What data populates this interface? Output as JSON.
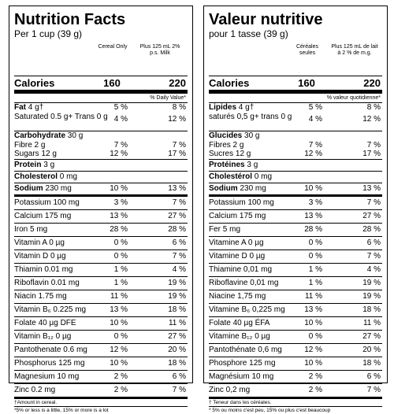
{
  "en": {
    "title": "Nutrition Facts",
    "serving": "Per 1 cup (39 g)",
    "col1": "Cereal Only",
    "col2": "Plus 125 mL 2% p.s. Milk",
    "calories_label": "Calories",
    "calories_1": "160",
    "calories_2": "220",
    "dv_header": "% Daily Value*",
    "fat": {
      "label": "Fat 4 g†",
      "p1": "5 %",
      "p2": "8 %"
    },
    "sat": {
      "label": "Saturated 0.5 g",
      "label2": "+ Trans 0 g",
      "p1": "4 %",
      "p2": "12 %"
    },
    "carb": {
      "label": "Carbohydrate 30 g"
    },
    "fibre": {
      "label": "Fibre 2 g",
      "p1": "7 %",
      "p2": "7 %"
    },
    "sugars": {
      "label": "Sugars 12 g",
      "p1": "12 %",
      "p2": "17 %"
    },
    "protein": {
      "label": "Protein 3 g"
    },
    "cholesterol": {
      "label": "Cholesterol 0 mg"
    },
    "sodium": {
      "label": "Sodium 230 mg",
      "p1": "10 %",
      "p2": "13 %"
    },
    "micros": [
      {
        "label": "Potassium 100 mg",
        "p1": "3 %",
        "p2": "7 %"
      },
      {
        "label": "Calcium 175 mg",
        "p1": "13 %",
        "p2": "27 %"
      },
      {
        "label": "Iron 5 mg",
        "p1": "28 %",
        "p2": "28 %"
      },
      {
        "label": "Vitamin A 0 µg",
        "p1": "0 %",
        "p2": "6 %"
      },
      {
        "label": "Vitamin D 0 µg",
        "p1": "0 %",
        "p2": "7 %"
      },
      {
        "label": "Thiamin 0.01 mg",
        "p1": "1 %",
        "p2": "4 %"
      },
      {
        "label": "Riboflavin 0.01 mg",
        "p1": "1 %",
        "p2": "19 %"
      },
      {
        "label": "Niacin 1.75 mg",
        "p1": "11 %",
        "p2": "19 %"
      },
      {
        "label": "Vitamin B₆ 0.225 mg",
        "p1": "13 %",
        "p2": "18 %"
      },
      {
        "label": "Folate 40 µg DFE",
        "p1": "10 %",
        "p2": "11 %"
      },
      {
        "label": "Vitamin B₁₂ 0 µg",
        "p1": "0 %",
        "p2": "27 %"
      },
      {
        "label": "Pantothenate 0.6 mg",
        "p1": "12 %",
        "p2": "20 %"
      },
      {
        "label": "Phosphorus 125 mg",
        "p1": "10 %",
        "p2": "18 %"
      },
      {
        "label": "Magnesium 10 mg",
        "p1": "2 %",
        "p2": "6 %"
      },
      {
        "label": "Zinc 0.2 mg",
        "p1": "2 %",
        "p2": "7 %"
      }
    ],
    "footnote1": "†Amount in cereal.",
    "footnote2": "*5% or less is a little, 15% or more is a lot"
  },
  "fr": {
    "title": "Valeur nutritive",
    "serving": "pour 1 tasse (39 g)",
    "col1": "Céréales seules",
    "col2": "Plus 125 mL de lait à 2 % de m.g.",
    "calories_label": "Calories",
    "calories_1": "160",
    "calories_2": "220",
    "dv_header": "% valeur quotidienne*",
    "fat": {
      "label": "Lipides 4 g†",
      "p1": "5 %",
      "p2": "8 %"
    },
    "sat": {
      "label": "saturés 0,5 g",
      "label2": "+ trans 0 g",
      "p1": "4 %",
      "p2": "12 %"
    },
    "carb": {
      "label": "Glucides 30 g"
    },
    "fibre": {
      "label": "Fibres 2 g",
      "p1": "7 %",
      "p2": "7 %"
    },
    "sugars": {
      "label": "Sucres 12 g",
      "p1": "12 %",
      "p2": "17 %"
    },
    "protein": {
      "label": "Protéines 3 g"
    },
    "cholesterol": {
      "label": "Cholestérol 0 mg"
    },
    "sodium": {
      "label": "Sodium 230 mg",
      "p1": "10 %",
      "p2": "13 %"
    },
    "micros": [
      {
        "label": "Potassium 100 mg",
        "p1": "3 %",
        "p2": "7 %"
      },
      {
        "label": "Calcium 175 mg",
        "p1": "13 %",
        "p2": "27 %"
      },
      {
        "label": "Fer 5 mg",
        "p1": "28 %",
        "p2": "28 %"
      },
      {
        "label": "Vitamine A 0 µg",
        "p1": "0 %",
        "p2": "6 %"
      },
      {
        "label": "Vitamine D 0 µg",
        "p1": "0 %",
        "p2": "7 %"
      },
      {
        "label": "Thiamine 0,01 mg",
        "p1": "1 %",
        "p2": "4 %"
      },
      {
        "label": "Riboflavine 0,01 mg",
        "p1": "1 %",
        "p2": "19 %"
      },
      {
        "label": "Niacine 1,75 mg",
        "p1": "11 %",
        "p2": "19 %"
      },
      {
        "label": "Vitamine B₆ 0,225 mg",
        "p1": "13 %",
        "p2": "18 %"
      },
      {
        "label": "Folate 40 µg ÉFA",
        "p1": "10 %",
        "p2": "11 %"
      },
      {
        "label": "Vitamine B₁₂ 0 µg",
        "p1": "0 %",
        "p2": "27 %"
      },
      {
        "label": "Pantothénate 0,6 mg",
        "p1": "12 %",
        "p2": "20 %"
      },
      {
        "label": "Phosphore 125 mg",
        "p1": "10 %",
        "p2": "18 %"
      },
      {
        "label": "Magnésium 10 mg",
        "p1": "2 %",
        "p2": "6 %"
      },
      {
        "label": "Zinc 0,2 mg",
        "p1": "2 %",
        "p2": "7 %"
      }
    ],
    "footnote1": "† Teneur dans les céréales.",
    "footnote2": "* 5% ou moins c'est peu, 15% ou plus c'est beaucoup"
  }
}
